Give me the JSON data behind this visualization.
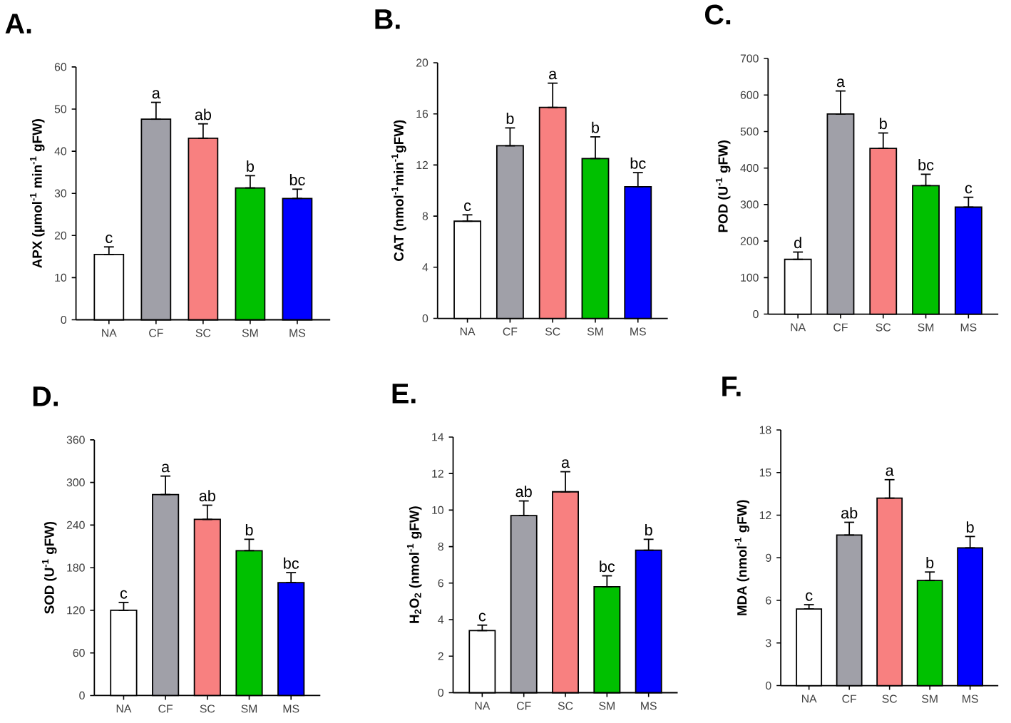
{
  "chart_data": [
    {
      "type": "bar",
      "title": "A.",
      "ylabel": "APX (µmol$^{-1}$ min$^{-1}$ gFW)",
      "categories": [
        "NA",
        "CF",
        "SC",
        "SM",
        "MS"
      ],
      "values": [
        15.5,
        47.6,
        43.1,
        31.3,
        28.8
      ],
      "colors": [
        "#ffffff",
        "#a0a0a8",
        "#f88080",
        "#00c000",
        "#0000ff"
      ],
      "errors": [
        [
          15.5,
          17.3
        ],
        [
          47.6,
          51.6
        ],
        [
          43.1,
          46.5
        ],
        [
          31.3,
          34.2
        ],
        [
          28.8,
          31.0
        ]
      ],
      "ylim": [
        0,
        60
      ],
      "yticks": [
        0,
        10,
        20,
        30,
        40,
        50,
        60
      ],
      "annotations": [
        {
          "text": "c",
          "x": "NA",
          "y": 17.3
        },
        {
          "text": "a",
          "x": "CF",
          "y": 51.6
        },
        {
          "text": "ab",
          "x": "SC",
          "y": 46.5
        },
        {
          "text": "b",
          "x": "SM",
          "y": 34.2
        },
        {
          "text": "bc",
          "x": "MS",
          "y": 31.0
        }
      ]
    },
    {
      "type": "bar",
      "title": "B.",
      "ylabel": "CAT (nmol$^{-1}$min$^{-1}$gFW)",
      "categories": [
        "NA",
        "CF",
        "SC",
        "SM",
        "MS"
      ],
      "values": [
        7.6,
        13.5,
        16.5,
        12.5,
        10.3
      ],
      "colors": [
        "#ffffff",
        "#a0a0a8",
        "#f88080",
        "#00c000",
        "#0000ff"
      ],
      "errors": [
        [
          7.6,
          8.1
        ],
        [
          13.5,
          14.9
        ],
        [
          16.5,
          18.4
        ],
        [
          12.5,
          14.2
        ],
        [
          10.3,
          11.4
        ]
      ],
      "ylim": [
        0,
        20
      ],
      "yticks": [
        0,
        4,
        8,
        12,
        16,
        20
      ],
      "annotations": [
        {
          "text": "c",
          "x": "NA",
          "y": 8.1
        },
        {
          "text": "b",
          "x": "CF",
          "y": 14.9
        },
        {
          "text": "a",
          "x": "SC",
          "y": 18.4
        },
        {
          "text": "b",
          "x": "SM",
          "y": 14.2
        },
        {
          "text": "bc",
          "x": "MS",
          "y": 11.4
        }
      ]
    },
    {
      "type": "bar",
      "title": "C.",
      "ylabel": "POD (U$^{-1}$ gFW)",
      "categories": [
        "NA",
        "CF",
        "SC",
        "SM",
        "MS"
      ],
      "values": [
        150,
        548,
        454,
        352,
        293
      ],
      "colors": [
        "#ffffff",
        "#a0a0a8",
        "#f88080",
        "#00c000",
        "#0000ff"
      ],
      "errors": [
        [
          150,
          170
        ],
        [
          548,
          611
        ],
        [
          454,
          496
        ],
        [
          352,
          383
        ],
        [
          293,
          320
        ]
      ],
      "ylim": [
        0,
        700
      ],
      "yticks": [
        0,
        100,
        200,
        300,
        400,
        500,
        600,
        700
      ],
      "annotations": [
        {
          "text": "d",
          "x": "NA",
          "y": 170
        },
        {
          "text": "a",
          "x": "CF",
          "y": 611
        },
        {
          "text": "b",
          "x": "SC",
          "y": 496
        },
        {
          "text": "bc",
          "x": "SM",
          "y": 383
        },
        {
          "text": "c",
          "x": "MS",
          "y": 320
        }
      ]
    },
    {
      "type": "bar",
      "title": "D.",
      "ylabel": "SOD (U$^{-1}$ gFW)",
      "categories": [
        "NA",
        "CF",
        "SC",
        "SM",
        "MS"
      ],
      "values": [
        120,
        283,
        248,
        204,
        159
      ],
      "colors": [
        "#ffffff",
        "#a0a0a8",
        "#f88080",
        "#00c000",
        "#0000ff"
      ],
      "errors": [
        [
          120,
          131
        ],
        [
          283,
          309
        ],
        [
          248,
          268
        ],
        [
          204,
          220
        ],
        [
          159,
          173
        ]
      ],
      "ylim": [
        0,
        360
      ],
      "yticks": [
        0,
        60,
        120,
        180,
        240,
        300,
        360
      ],
      "annotations": [
        {
          "text": "c",
          "x": "NA",
          "y": 131
        },
        {
          "text": "a",
          "x": "CF",
          "y": 309
        },
        {
          "text": "ab",
          "x": "SC",
          "y": 268
        },
        {
          "text": "b",
          "x": "SM",
          "y": 220
        },
        {
          "text": "bc",
          "x": "MS",
          "y": 173
        }
      ]
    },
    {
      "type": "bar",
      "title": "E.",
      "ylabel": "H$_{2}$O$_{2}$ (nmol$^{-1}$ gFW)",
      "categories": [
        "NA",
        "CF",
        "SC",
        "SM",
        "MS"
      ],
      "values": [
        3.4,
        9.7,
        11.0,
        5.8,
        7.8
      ],
      "colors": [
        "#ffffff",
        "#a0a0a8",
        "#f88080",
        "#00c000",
        "#0000ff"
      ],
      "errors": [
        [
          3.4,
          3.7
        ],
        [
          9.7,
          10.5
        ],
        [
          11.0,
          12.1
        ],
        [
          5.8,
          6.4
        ],
        [
          7.8,
          8.4
        ]
      ],
      "ylim": [
        0,
        14
      ],
      "yticks": [
        0,
        2,
        4,
        6,
        8,
        10,
        12,
        14
      ],
      "annotations": [
        {
          "text": "c",
          "x": "NA",
          "y": 3.7
        },
        {
          "text": "ab",
          "x": "CF",
          "y": 10.5
        },
        {
          "text": "a",
          "x": "SC",
          "y": 12.1
        },
        {
          "text": "bc",
          "x": "SM",
          "y": 6.4
        },
        {
          "text": "b",
          "x": "MS",
          "y": 8.4
        }
      ]
    },
    {
      "type": "bar",
      "title": "F.",
      "ylabel": "MDA (nmol$^{-1}$ gFW)",
      "categories": [
        "NA",
        "CF",
        "SC",
        "SM",
        "MS"
      ],
      "values": [
        5.4,
        10.6,
        13.2,
        7.4,
        9.7
      ],
      "colors": [
        "#ffffff",
        "#a0a0a8",
        "#f88080",
        "#00c000",
        "#0000ff"
      ],
      "errors": [
        [
          5.4,
          5.7
        ],
        [
          10.6,
          11.5
        ],
        [
          13.2,
          14.5
        ],
        [
          7.4,
          8.0
        ],
        [
          9.7,
          10.5
        ]
      ],
      "ylim": [
        0,
        18
      ],
      "yticks": [
        0,
        3,
        6,
        9,
        12,
        15,
        18
      ],
      "annotations": [
        {
          "text": "c",
          "x": "NA",
          "y": 5.7
        },
        {
          "text": "ab",
          "x": "CF",
          "y": 11.5
        },
        {
          "text": "a",
          "x": "SC",
          "y": 14.5
        },
        {
          "text": "b",
          "x": "SM",
          "y": 8.0
        },
        {
          "text": "b",
          "x": "MS",
          "y": 10.5
        }
      ]
    }
  ]
}
